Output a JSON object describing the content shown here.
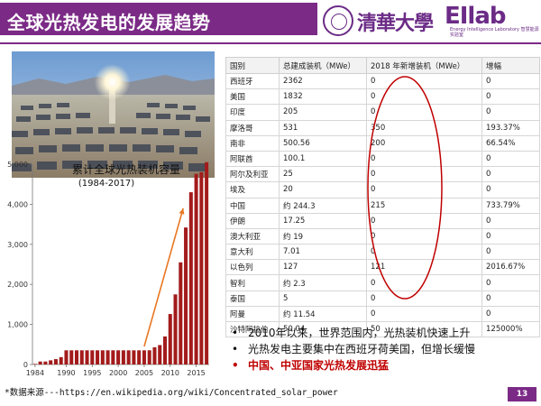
{
  "header": {
    "title": "全球光热发电的发展趋势",
    "university_logo_text": "清華大學",
    "lab_logo_text": "EIlab",
    "lab_subtitle": "Energy Intelligence Laboratory 智慧能源实验室"
  },
  "colors": {
    "brand": "#7b2a86",
    "bar": "#a31b1b",
    "arrow": "#e87722",
    "oval": "#c00000",
    "highlight": "#c00000"
  },
  "photo": {
    "name": "solar-tower-field-photo"
  },
  "chart_data": {
    "type": "bar",
    "title": "累计全球光热装机容量",
    "subtitle": "(1984-2017)",
    "x": [
      1984,
      1985,
      1986,
      1987,
      1988,
      1989,
      1990,
      1991,
      1992,
      1993,
      1994,
      1995,
      1996,
      1997,
      1998,
      1999,
      2000,
      2001,
      2002,
      2003,
      2004,
      2005,
      2006,
      2007,
      2008,
      2009,
      2010,
      2011,
      2012,
      2013,
      2014,
      2015,
      2016,
      2017
    ],
    "values": [
      14,
      74,
      74,
      104,
      134,
      184,
      354,
      354,
      354,
      354,
      354,
      354,
      354,
      354,
      354,
      354,
      354,
      354,
      354,
      354,
      354,
      354,
      355,
      430,
      485,
      700,
      1260,
      1750,
      2550,
      3420,
      4300,
      4760,
      4800,
      5050
    ],
    "ylim": [
      0,
      5000
    ],
    "yticks": [
      "0",
      "1,000",
      "2,000",
      "3,000",
      "4,000",
      "5,000"
    ],
    "xticks": [
      "1984",
      "1990",
      "1995",
      "2000",
      "2005",
      "2010",
      "2015"
    ],
    "grid": false
  },
  "table": {
    "headers": [
      "国别",
      "总建成装机（MWe）",
      "2018 年新增装机（MWe）",
      "增幅"
    ],
    "rows": [
      [
        "西班牙",
        "2362",
        "0",
        "0"
      ],
      [
        "美国",
        "1832",
        "0",
        "0"
      ],
      [
        "印度",
        "205",
        "0",
        "0"
      ],
      [
        "摩洛哥",
        "531",
        "350",
        "193.37%"
      ],
      [
        "南非",
        "500.56",
        "200",
        "66.54%"
      ],
      [
        "阿联酋",
        "100.1",
        "0",
        "0"
      ],
      [
        "阿尔及利亚",
        "25",
        "0",
        "0"
      ],
      [
        "埃及",
        "20",
        "0",
        "0"
      ],
      [
        "中国",
        "约 244.3",
        "215",
        "733.79%"
      ],
      [
        "伊朗",
        "17.25",
        "0",
        "0"
      ],
      [
        "澳大利亚",
        "约 19",
        "0",
        "0"
      ],
      [
        "意大利",
        "7.01",
        "0",
        "0"
      ],
      [
        "以色列",
        "127",
        "121",
        "2016.67%"
      ],
      [
        "智利",
        "约 2.3",
        "0",
        "0"
      ],
      [
        "泰国",
        "5",
        "0",
        "0"
      ],
      [
        "阿曼",
        "约 11.54",
        "0",
        "0"
      ],
      [
        "沙特阿拉伯",
        "50.04",
        "50",
        "125000%"
      ]
    ]
  },
  "bullets": [
    {
      "text": "2010年以来，世界范围内，光热装机快速上升",
      "highlight": false
    },
    {
      "text": "光热发电主要集中在西班牙荷美国，但增长缓慢",
      "highlight": false
    },
    {
      "text": "中国、中亚国家光热发展迅猛",
      "highlight": true
    }
  ],
  "bullet_symbol": "•",
  "footer": {
    "source": "*数据来源---https://en.wikipedia.org/wiki/Concentrated_solar_power",
    "page_number": "13"
  }
}
